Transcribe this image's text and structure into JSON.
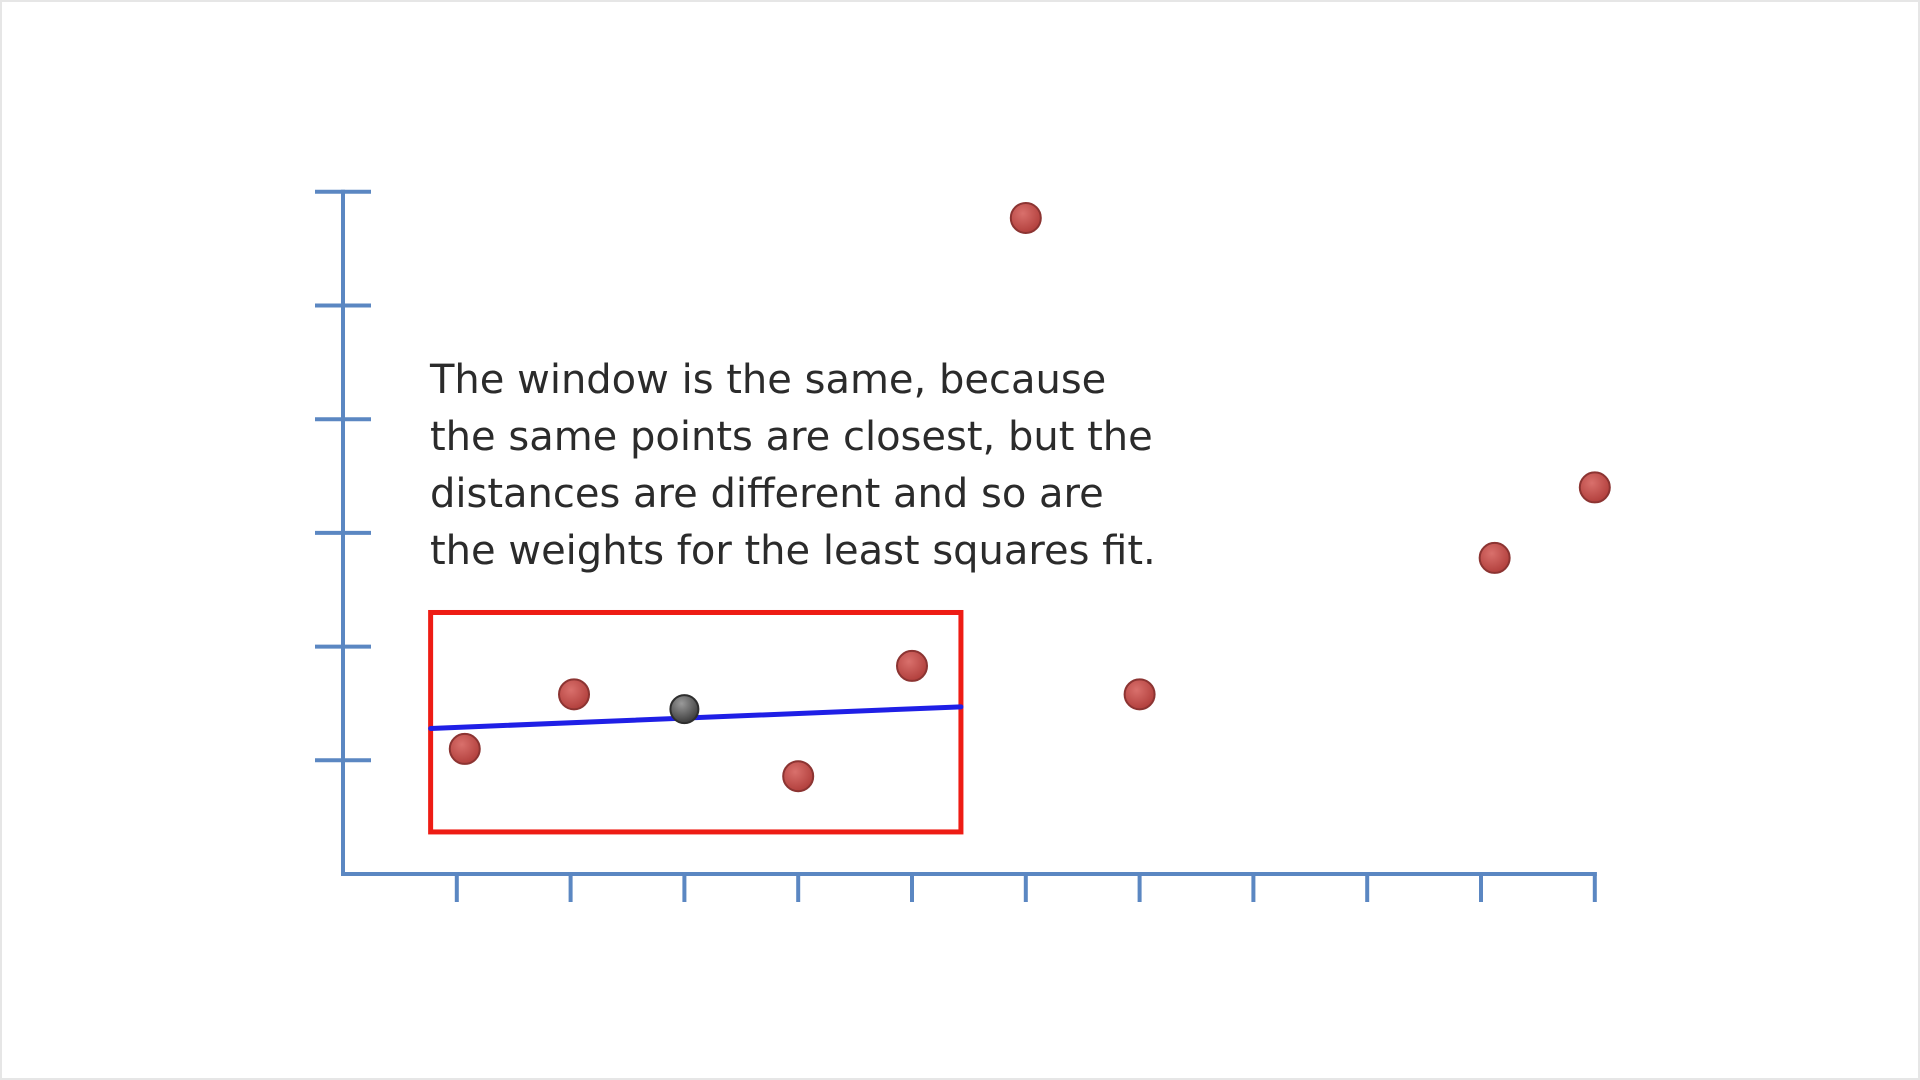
{
  "annotation": {
    "lines": [
      "The window is the same, because",
      "the same points are closest, but the",
      "distances are different and so are",
      "the weights for the least squares fit."
    ]
  },
  "chart_data": {
    "type": "scatter",
    "title": "",
    "xlabel": "",
    "ylabel": "",
    "xlim": [
      0,
      11
    ],
    "ylim": [
      0,
      6
    ],
    "x_ticks": [
      1,
      2,
      3,
      4,
      5,
      6,
      7,
      8,
      9,
      10,
      11
    ],
    "y_ticks": [
      1,
      2,
      3,
      4,
      5,
      6
    ],
    "grid": false,
    "colors": {
      "axis": "#5b87c2",
      "points": "#c0504d",
      "point_stroke": "#8c3432",
      "focal_point": "#666666",
      "fit_line": "#1f1fe6",
      "window": "#ee1c14"
    },
    "series": [
      {
        "points": [
          {
            "x": 1.07,
            "y": 1.1
          },
          {
            "x": 2.03,
            "y": 1.58
          },
          {
            "x": 4.0,
            "y": 0.86
          },
          {
            "x": 5.0,
            "y": 1.83
          },
          {
            "x": 6.0,
            "y": 5.77
          },
          {
            "x": 7.0,
            "y": 1.58
          },
          {
            "x": 10.12,
            "y": 2.78
          },
          {
            "x": 11.0,
            "y": 3.4
          }
        ]
      }
    ],
    "focal_point": {
      "x": 3.0,
      "y": 1.45
    },
    "window": {
      "x": [
        0.77,
        5.43
      ],
      "y": [
        0.37,
        2.3
      ]
    },
    "fit_line": {
      "x": [
        0.77,
        5.43
      ],
      "y": [
        1.28,
        1.47
      ]
    }
  }
}
